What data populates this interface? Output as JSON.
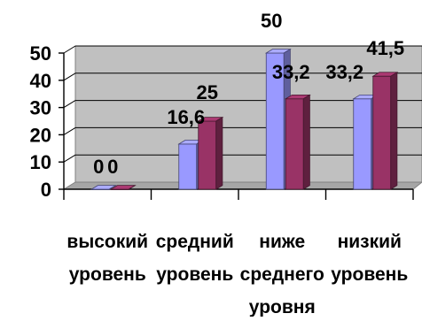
{
  "chart_data": {
    "type": "bar",
    "categories": [
      [
        "высокий",
        "уровень"
      ],
      [
        "средний",
        "уровень"
      ],
      [
        "ниже",
        "среднего",
        "уровня"
      ],
      [
        "низкий",
        "уровень"
      ]
    ],
    "series": [
      {
        "values": [
          0,
          16.6,
          50,
          33.2
        ],
        "labels": [
          "0",
          "16,6",
          "50",
          "33,2"
        ],
        "color": "#9999ff"
      },
      {
        "values": [
          0,
          25,
          33.2,
          41.5
        ],
        "labels": [
          "0",
          "25",
          "33,2",
          "41,5"
        ],
        "color": "#993366"
      }
    ],
    "y_ticks": [
      "0",
      "10",
      "20",
      "30",
      "40",
      "50"
    ],
    "ylim": [
      0,
      50
    ],
    "style": "3d",
    "grid": true,
    "legend": "none",
    "wall_color": "#c0c0c0"
  }
}
